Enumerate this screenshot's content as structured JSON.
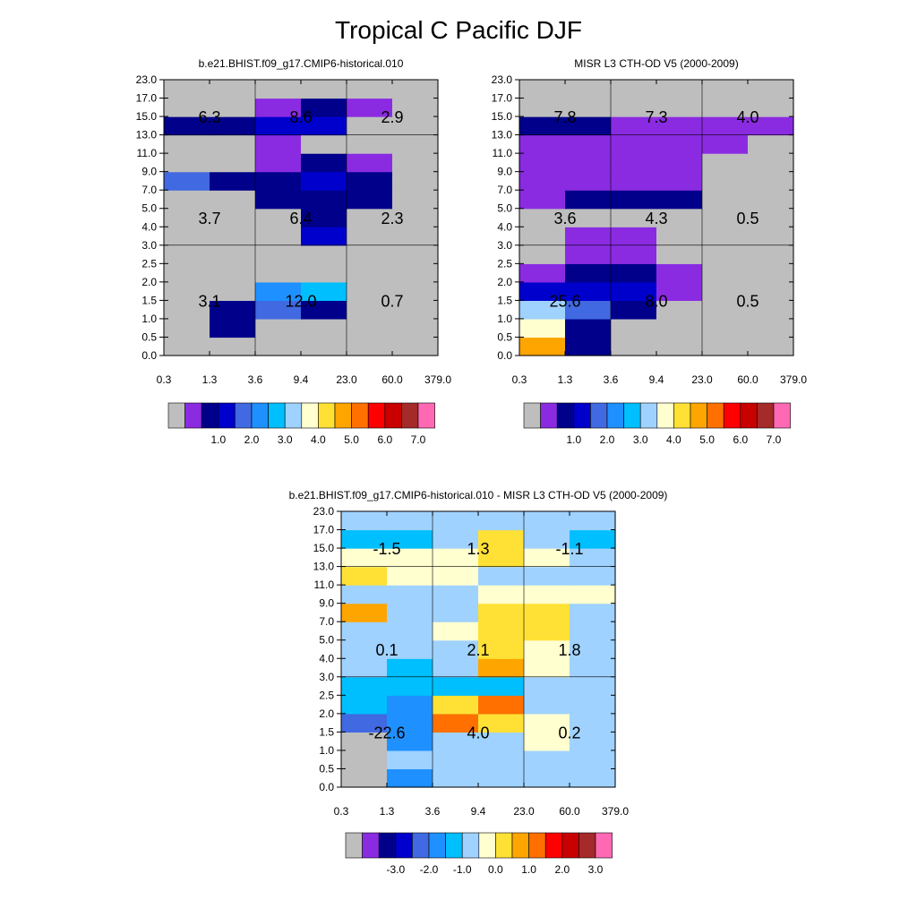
{
  "figure_title": "Tropical C Pacific DJF",
  "colors": {
    "abs_palette": [
      "#bebebe",
      "#8a2be2",
      "#00008b",
      "#0000cd",
      "#4169e1",
      "#1e90ff",
      "#00bfff",
      "#a0d2ff",
      "#ffffd0",
      "#ffe135",
      "#ffa500",
      "#ff7000",
      "#ff0000",
      "#c80000",
      "#a52a2a",
      "#ff69b4"
    ],
    "diff_palette": [
      "#bebebe",
      "#8a2be2",
      "#00008b",
      "#0000cd",
      "#4169e1",
      "#1e90ff",
      "#00bfff",
      "#a0d2ff",
      "#ffffd0",
      "#ffe135",
      "#ffa500",
      "#ff7000",
      "#ff0000",
      "#c80000",
      "#a52a2a",
      "#ff69b4"
    ]
  },
  "chart_data": [
    {
      "type": "heatmap",
      "title": "b.e21.BHIST.f09_g17.CMIP6-historical.010",
      "x_ticks": [
        "0.3",
        "1.3",
        "3.6",
        "9.4",
        "23.0",
        "60.0",
        "379.0"
      ],
      "y_ticks": [
        "0.0",
        "0.5",
        "1.0",
        "1.5",
        "2.0",
        "2.5",
        "3.0",
        "4.0",
        "5.0",
        "7.0",
        "9.0",
        "11.0",
        "13.0",
        "15.0",
        "17.0",
        "23.0"
      ],
      "colorbar_labels": [
        "1.0",
        "2.0",
        "3.0",
        "4.0",
        "5.0",
        "6.0",
        "7.0"
      ],
      "cell_color_index": [
        [
          0,
          0,
          0,
          0,
          0,
          0
        ],
        [
          0,
          2,
          0,
          0,
          0,
          0
        ],
        [
          0,
          2,
          4,
          2,
          0,
          0
        ],
        [
          0,
          0,
          5,
          6,
          0,
          0
        ],
        [
          0,
          0,
          0,
          0,
          0,
          0
        ],
        [
          0,
          0,
          0,
          0,
          0,
          0
        ],
        [
          0,
          0,
          0,
          3,
          0,
          0
        ],
        [
          0,
          0,
          0,
          2,
          0,
          0
        ],
        [
          0,
          0,
          2,
          2,
          2,
          0
        ],
        [
          4,
          2,
          2,
          3,
          2,
          0
        ],
        [
          0,
          0,
          1,
          2,
          1,
          0
        ],
        [
          0,
          0,
          1,
          0,
          0,
          0
        ],
        [
          2,
          2,
          3,
          3,
          0,
          0
        ],
        [
          0,
          0,
          1,
          2,
          1,
          0
        ],
        [
          0,
          0,
          0,
          0,
          0,
          0
        ]
      ],
      "annotations": [
        {
          "label": "3.1",
          "x_bin": 0,
          "y_bin": 1
        },
        {
          "label": "12.0",
          "x_bin": 1,
          "y_bin": 1
        },
        {
          "label": "0.7",
          "x_bin": 2,
          "y_bin": 1
        },
        {
          "label": "3.7",
          "x_bin": 0,
          "y_bin": 2
        },
        {
          "label": "6.4",
          "x_bin": 1,
          "y_bin": 2
        },
        {
          "label": "2.3",
          "x_bin": 2,
          "y_bin": 2
        },
        {
          "label": "6.3",
          "x_bin": 0,
          "y_bin": 3
        },
        {
          "label": "8.6",
          "x_bin": 1,
          "y_bin": 3
        },
        {
          "label": "2.9",
          "x_bin": 2,
          "y_bin": 3
        }
      ]
    },
    {
      "type": "heatmap",
      "title": "MISR L3 CTH-OD V5 (2000-2009)",
      "x_ticks": [
        "0.3",
        "1.3",
        "3.6",
        "9.4",
        "23.0",
        "60.0",
        "379.0"
      ],
      "y_ticks": [
        "0.0",
        "0.5",
        "1.0",
        "1.5",
        "2.0",
        "2.5",
        "3.0",
        "4.0",
        "5.0",
        "7.0",
        "9.0",
        "11.0",
        "13.0",
        "15.0",
        "17.0",
        "23.0"
      ],
      "colorbar_labels": [
        "1.0",
        "2.0",
        "3.0",
        "4.0",
        "5.0",
        "6.0",
        "7.0"
      ],
      "cell_color_index": [
        [
          10,
          2,
          0,
          0,
          0,
          0
        ],
        [
          8,
          2,
          0,
          0,
          0,
          0
        ],
        [
          7,
          4,
          2,
          0,
          0,
          0
        ],
        [
          3,
          3,
          3,
          1,
          0,
          0
        ],
        [
          1,
          2,
          2,
          1,
          0,
          0
        ],
        [
          0,
          1,
          1,
          0,
          0,
          0
        ],
        [
          0,
          1,
          1,
          0,
          0,
          0
        ],
        [
          0,
          0,
          0,
          0,
          0,
          0
        ],
        [
          1,
          2,
          2,
          2,
          0,
          0
        ],
        [
          1,
          1,
          1,
          1,
          0,
          0
        ],
        [
          1,
          1,
          1,
          1,
          0,
          0
        ],
        [
          1,
          1,
          1,
          1,
          1,
          0
        ],
        [
          2,
          2,
          1,
          1,
          1,
          1
        ],
        [
          0,
          0,
          0,
          0,
          0,
          0
        ],
        [
          0,
          0,
          0,
          0,
          0,
          0
        ]
      ],
      "annotations": [
        {
          "label": "25.6",
          "x_bin": 0,
          "y_bin": 1
        },
        {
          "label": "8.0",
          "x_bin": 1,
          "y_bin": 1
        },
        {
          "label": "0.5",
          "x_bin": 2,
          "y_bin": 1
        },
        {
          "label": "3.6",
          "x_bin": 0,
          "y_bin": 2
        },
        {
          "label": "4.3",
          "x_bin": 1,
          "y_bin": 2
        },
        {
          "label": "0.5",
          "x_bin": 2,
          "y_bin": 2
        },
        {
          "label": "7.8",
          "x_bin": 0,
          "y_bin": 3
        },
        {
          "label": "7.3",
          "x_bin": 1,
          "y_bin": 3
        },
        {
          "label": "4.0",
          "x_bin": 2,
          "y_bin": 3
        }
      ]
    },
    {
      "type": "heatmap",
      "title": "b.e21.BHIST.f09_g17.CMIP6-historical.010 - MISR L3 CTH-OD V5 (2000-2009)",
      "x_ticks": [
        "0.3",
        "1.3",
        "3.6",
        "9.4",
        "23.0",
        "60.0",
        "379.0"
      ],
      "y_ticks": [
        "0.0",
        "0.5",
        "1.0",
        "1.5",
        "2.0",
        "2.5",
        "3.0",
        "4.0",
        "5.0",
        "7.0",
        "9.0",
        "11.0",
        "13.0",
        "15.0",
        "17.0",
        "23.0"
      ],
      "colorbar_labels": [
        "-3.0",
        "-2.0",
        "-1.0",
        "0.0",
        "1.0",
        "2.0",
        "3.0"
      ],
      "cell_color_index": [
        [
          0,
          5,
          7,
          7,
          7,
          7
        ],
        [
          0,
          7,
          7,
          7,
          7,
          7
        ],
        [
          0,
          5,
          7,
          7,
          8,
          7
        ],
        [
          4,
          5,
          11,
          9,
          8,
          7
        ],
        [
          6,
          5,
          9,
          11,
          7,
          7
        ],
        [
          6,
          6,
          6,
          6,
          7,
          7
        ],
        [
          7,
          6,
          7,
          10,
          8,
          7
        ],
        [
          7,
          7,
          7,
          9,
          8,
          7
        ],
        [
          7,
          7,
          8,
          9,
          9,
          7
        ],
        [
          10,
          7,
          7,
          9,
          9,
          7
        ],
        [
          7,
          7,
          7,
          8,
          8,
          8
        ],
        [
          9,
          8,
          8,
          7,
          7,
          7
        ],
        [
          8,
          8,
          8,
          9,
          8,
          7
        ],
        [
          6,
          6,
          7,
          9,
          7,
          6
        ],
        [
          7,
          7,
          7,
          7,
          7,
          7
        ]
      ],
      "annotations": [
        {
          "label": "-22.6",
          "x_bin": 0,
          "y_bin": 1
        },
        {
          "label": "4.0",
          "x_bin": 1,
          "y_bin": 1
        },
        {
          "label": "0.2",
          "x_bin": 2,
          "y_bin": 1
        },
        {
          "label": "0.1",
          "x_bin": 0,
          "y_bin": 2
        },
        {
          "label": "2.1",
          "x_bin": 1,
          "y_bin": 2
        },
        {
          "label": "1.8",
          "x_bin": 2,
          "y_bin": 2
        },
        {
          "label": "-1.5",
          "x_bin": 0,
          "y_bin": 3
        },
        {
          "label": "1.3",
          "x_bin": 1,
          "y_bin": 3
        },
        {
          "label": "-1.1",
          "x_bin": 2,
          "y_bin": 3
        }
      ]
    }
  ]
}
